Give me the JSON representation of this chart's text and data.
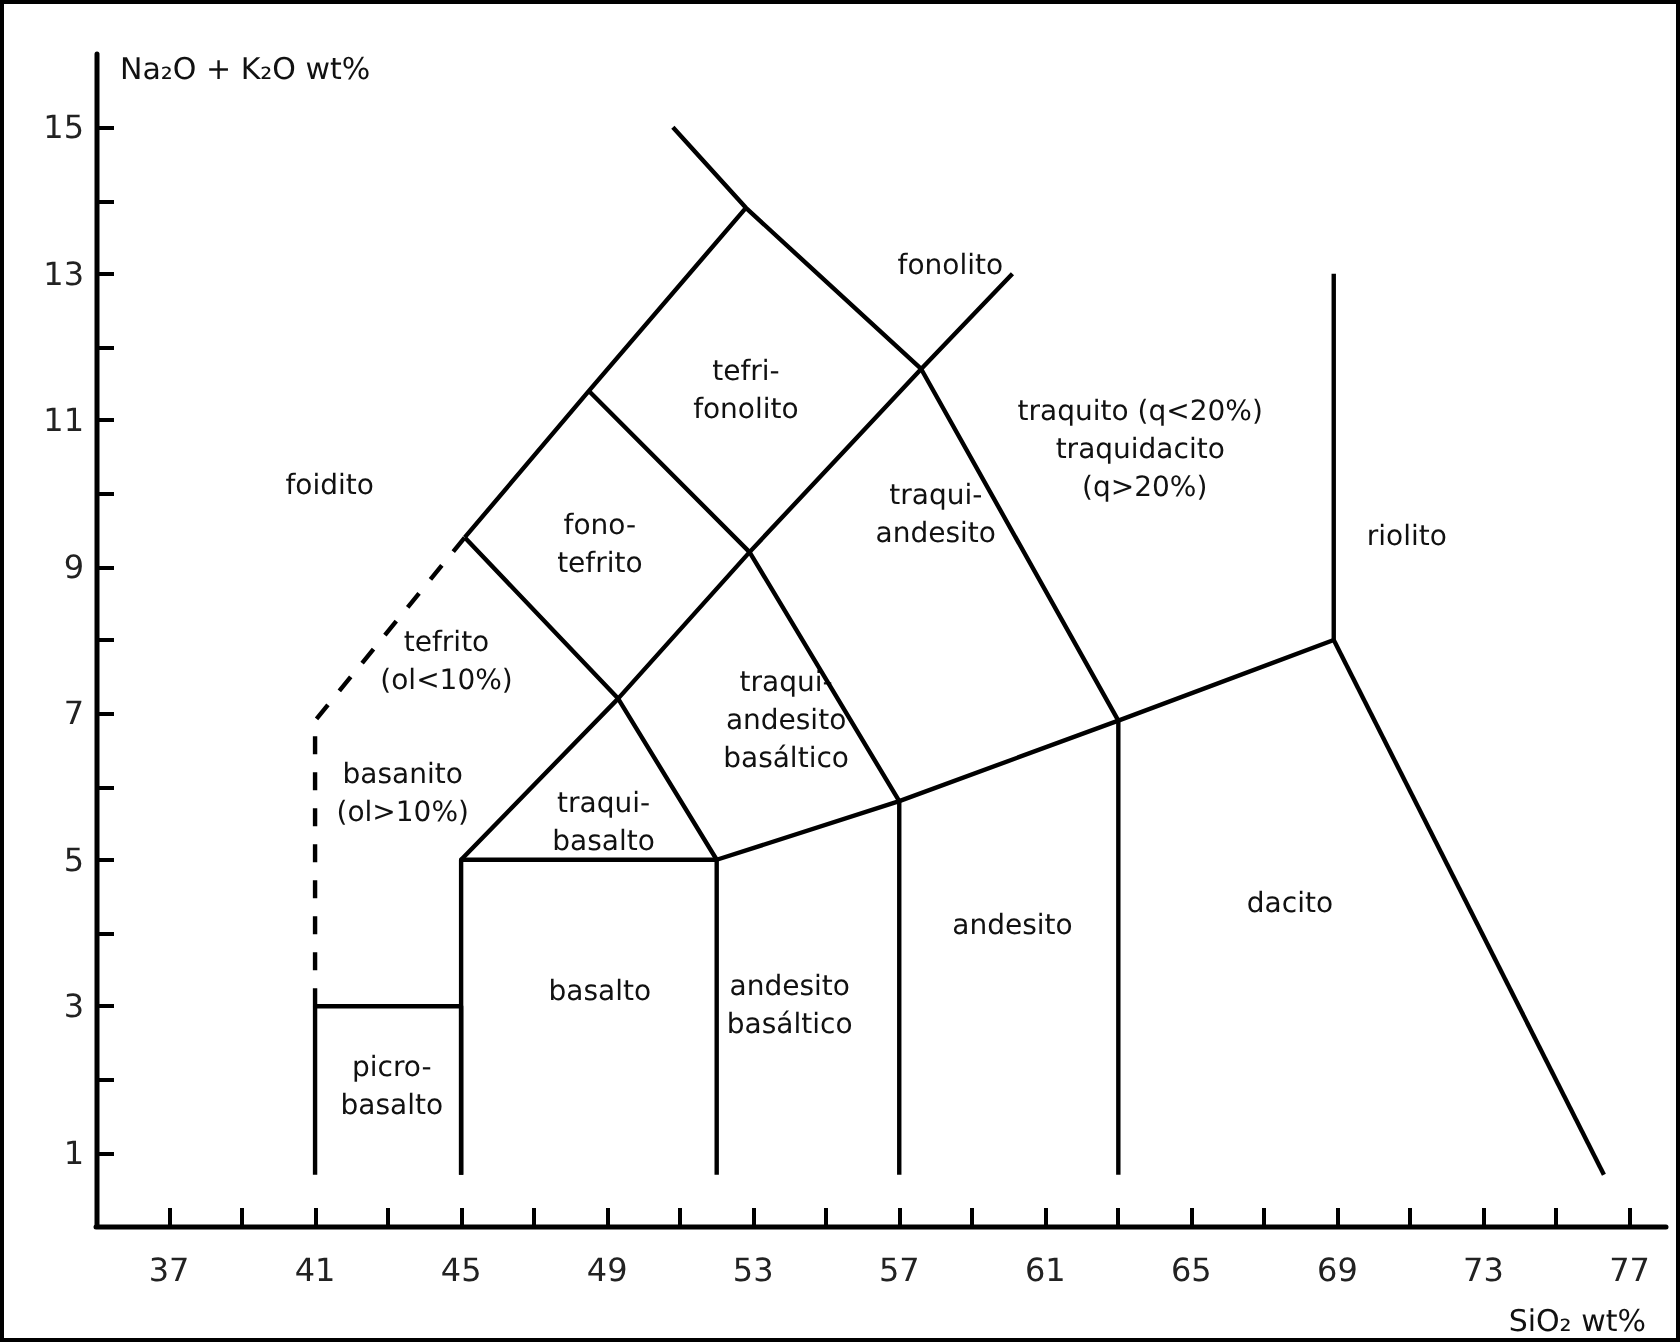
{
  "chart_data": {
    "type": "line",
    "xlabel": "SiO₂ wt%",
    "ylabel": "Na₂O + K₂O wt%",
    "xlim": [
      35,
      78
    ],
    "ylim": [
      0,
      16
    ],
    "xticks": [
      37,
      {
        "value": 39,
        "label": null
      },
      41,
      {
        "value": 43,
        "label": null
      },
      45,
      {
        "value": 47,
        "label": null
      },
      49,
      {
        "value": 51,
        "label": null
      },
      53,
      {
        "value": 55,
        "label": null
      },
      57,
      {
        "value": 59,
        "label": null
      },
      61,
      {
        "value": 63,
        "label": null
      },
      65,
      {
        "value": 67,
        "label": null
      },
      69,
      {
        "value": 71,
        "label": null
      },
      73,
      {
        "value": 75,
        "label": null
      },
      77
    ],
    "yticks": [
      1,
      {
        "value": 2,
        "label": null
      },
      3,
      {
        "value": 4,
        "label": null
      },
      5,
      {
        "value": 6,
        "label": null
      },
      7,
      {
        "value": 8,
        "label": null
      },
      9,
      {
        "value": 10,
        "label": null
      },
      11,
      {
        "value": 12,
        "label": null
      },
      13,
      {
        "value": 14,
        "label": null
      },
      15
    ],
    "grid": false,
    "marker": "none",
    "series": [
      {
        "color": "#000000",
        "x": [
          41,
          41,
          45,
          45
        ],
        "values": [
          0.7,
          3,
          3,
          0.7
        ]
      },
      {
        "color": "#000000",
        "x": [
          45,
          45,
          52,
          52
        ],
        "values": [
          0.7,
          5,
          5,
          0.7
        ]
      },
      {
        "color": "#000000",
        "x": [
          57,
          57
        ],
        "values": [
          0.7,
          5.8
        ]
      },
      {
        "color": "#000000",
        "x": [
          63,
          63
        ],
        "values": [
          0.7,
          6.9
        ]
      },
      {
        "color": "#000000",
        "x": [
          52,
          57,
          63,
          68.9
        ],
        "values": [
          5,
          5.8,
          6.9,
          8
        ]
      },
      {
        "color": "#000000",
        "x": [
          68.9,
          68.9
        ],
        "values": [
          8,
          13
        ]
      },
      {
        "color": "#000000",
        "x": [
          68.9,
          76.3
        ],
        "values": [
          8,
          0.7
        ]
      },
      {
        "color": "#000000",
        "x": [
          45,
          49.3,
          52.9,
          57.6,
          60.1
        ],
        "values": [
          5,
          7.2,
          9.2,
          11.7,
          13
        ]
      },
      {
        "color": "#000000",
        "x": [
          45.1,
          49.3,
          52
        ],
        "values": [
          9.4,
          7.2,
          5
        ]
      },
      {
        "color": "#000000",
        "x": [
          48.5,
          52.9,
          57
        ],
        "values": [
          11.4,
          9.2,
          5.8
        ]
      },
      {
        "color": "#000000",
        "x": [
          50.8,
          52.8,
          57.6,
          63
        ],
        "values": [
          15,
          13.9,
          11.7,
          6.9
        ]
      },
      {
        "color": "#000000",
        "x": [
          45.1,
          48.5,
          52.8
        ],
        "values": [
          9.4,
          11.4,
          13.9
        ]
      },
      {
        "color": "#000000",
        "line_style": "dashed",
        "x": [
          41,
          41,
          45.1
        ],
        "values": [
          3,
          6.9,
          9.4
        ]
      }
    ],
    "annotations": [
      "foidito",
      "fono-\ntefrito",
      "tefri-\nfonolito",
      "fonolito",
      "traquito (q<20%)\ntraquidacito\n (q>20%)",
      "traqui-\nandesito",
      "riolito",
      "tefrito\n(ol<10%)",
      "basanito\n(ol>10%)",
      "traqui-\nbasalto",
      "traqui-\nandesito\nbasáltico",
      "basalto",
      "picro-\nbasalto",
      "andesito\nbasáltico",
      "andesito",
      "dacito"
    ]
  }
}
